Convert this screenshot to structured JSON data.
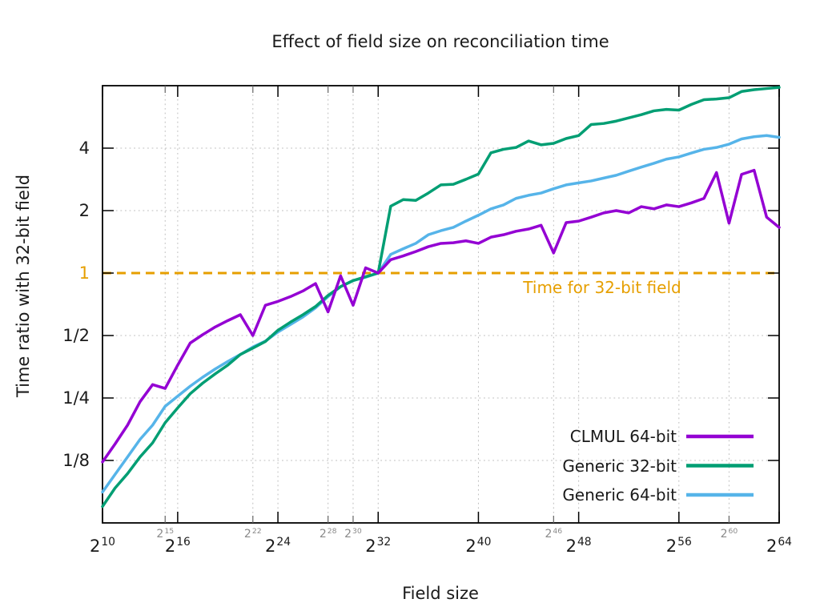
{
  "title": "Effect of field size on reconciliation time",
  "axes": {
    "x": {
      "label": "Field size",
      "tick_format": "2^e",
      "major_ticks": [
        10,
        16,
        24,
        32,
        40,
        48,
        56,
        64
      ],
      "minor_ticks": [
        15,
        22,
        28,
        30,
        46,
        60
      ],
      "range_exponents": [
        10,
        64
      ]
    },
    "y": {
      "label": "Time ratio with 32-bit field",
      "scale": "log2",
      "range": [
        0.0625,
        8
      ],
      "ticks": [
        {
          "label": "4",
          "value": 4
        },
        {
          "label": "2",
          "value": 2
        },
        {
          "label": "1",
          "value": 1
        },
        {
          "label": "1/2",
          "value": 0.5
        },
        {
          "label": "1/4",
          "value": 0.25
        },
        {
          "label": "1/8",
          "value": 0.125
        }
      ]
    }
  },
  "reference_line": {
    "value": 1,
    "label": "Time for 32-bit field",
    "color": "#E69F00",
    "style": "dashed"
  },
  "legend": {
    "position": "inside bottom-right"
  },
  "colors": {
    "frame": "#000000",
    "grid": "#bdbdbd",
    "minor_tick": "#666666",
    "minor_tick_label": "#8a8a8a",
    "text": "#1a1a1a"
  },
  "chart_data": {
    "type": "line",
    "title": "Effect of field size on reconciliation time",
    "xlabel": "Field size",
    "ylabel": "Time ratio with 32-bit field",
    "x_axis_note": "x values are field sizes 2^e; axis is linear in the exponent e from 10 to 64",
    "y_axis_note": "log2 scale from 1/16 to 8; all series pass through 1.0 at 2^32",
    "x_exponents": [
      10,
      11,
      12,
      13,
      14,
      15,
      16,
      17,
      18,
      19,
      20,
      21,
      22,
      23,
      24,
      25,
      26,
      27,
      28,
      29,
      30,
      31,
      32,
      33,
      34,
      35,
      36,
      37,
      38,
      39,
      40,
      41,
      42,
      43,
      44,
      45,
      46,
      47,
      48,
      49,
      50,
      51,
      52,
      53,
      54,
      55,
      56,
      57,
      58,
      59,
      60,
      61,
      62,
      63,
      64
    ],
    "series": [
      {
        "name": "CLMUL 64-bit",
        "color": "#9400D3",
        "values": [
          0.123,
          0.15,
          0.185,
          0.24,
          0.29,
          0.278,
          0.36,
          0.46,
          0.505,
          0.55,
          0.59,
          0.63,
          0.5,
          0.7,
          0.73,
          0.77,
          0.82,
          0.89,
          0.65,
          0.97,
          0.7,
          1.06,
          1.0,
          1.16,
          1.21,
          1.27,
          1.34,
          1.39,
          1.4,
          1.43,
          1.39,
          1.49,
          1.53,
          1.59,
          1.63,
          1.7,
          1.25,
          1.75,
          1.78,
          1.86,
          1.95,
          2.0,
          1.95,
          2.09,
          2.04,
          2.13,
          2.09,
          2.18,
          2.29,
          3.05,
          1.74,
          2.99,
          3.13,
          1.86,
          1.66
        ]
      },
      {
        "name": "Generic 32-bit",
        "color": "#009E73",
        "values": [
          0.075,
          0.092,
          0.108,
          0.13,
          0.152,
          0.19,
          0.224,
          0.262,
          0.295,
          0.327,
          0.36,
          0.405,
          0.435,
          0.468,
          0.53,
          0.58,
          0.63,
          0.69,
          0.78,
          0.86,
          0.92,
          0.96,
          1.0,
          2.1,
          2.26,
          2.24,
          2.43,
          2.66,
          2.68,
          2.83,
          3.0,
          3.8,
          3.95,
          4.03,
          4.33,
          4.15,
          4.22,
          4.45,
          4.6,
          5.2,
          5.26,
          5.4,
          5.6,
          5.8,
          6.05,
          6.15,
          6.1,
          6.5,
          6.85,
          6.9,
          7.0,
          7.5,
          7.65,
          7.75,
          7.85
        ]
      },
      {
        "name": "Generic 64-bit",
        "color": "#56B4E9",
        "values": [
          0.088,
          0.107,
          0.13,
          0.158,
          0.185,
          0.228,
          0.255,
          0.285,
          0.315,
          0.345,
          0.375,
          0.405,
          0.44,
          0.47,
          0.52,
          0.565,
          0.615,
          0.68,
          0.77,
          0.86,
          0.92,
          0.955,
          1.0,
          1.23,
          1.31,
          1.39,
          1.53,
          1.6,
          1.66,
          1.78,
          1.9,
          2.04,
          2.13,
          2.29,
          2.37,
          2.43,
          2.55,
          2.66,
          2.72,
          2.78,
          2.87,
          2.96,
          3.1,
          3.24,
          3.38,
          3.54,
          3.63,
          3.79,
          3.95,
          4.03,
          4.18,
          4.43,
          4.54,
          4.6,
          4.51
        ]
      }
    ]
  }
}
